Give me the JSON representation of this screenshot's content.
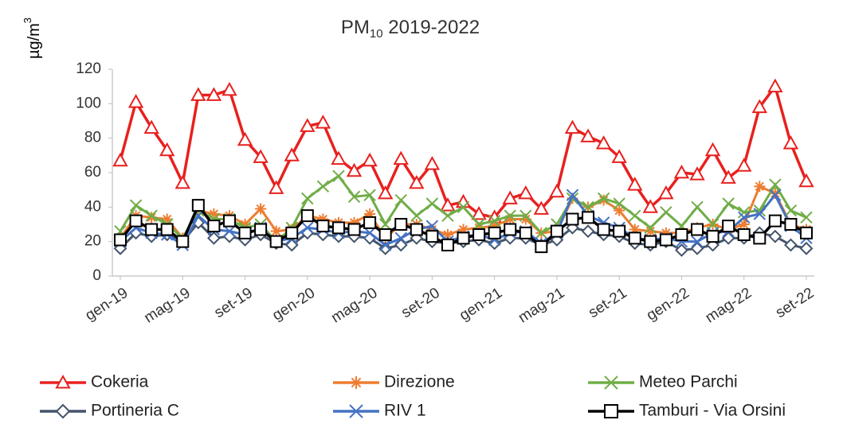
{
  "chart_data": {
    "type": "line",
    "title": {
      "main": "PM",
      "sub": "10",
      "rest": " 2019-2022"
    },
    "y_label": {
      "base": "µg/m",
      "sup": "3"
    },
    "categories": [
      "gen-19",
      null,
      null,
      null,
      "mag-19",
      null,
      null,
      null,
      "set-19",
      null,
      null,
      null,
      "gen-20",
      null,
      null,
      null,
      "mag-20",
      null,
      null,
      null,
      "set-20",
      null,
      null,
      null,
      "gen-21",
      null,
      null,
      null,
      "mag-21",
      null,
      null,
      null,
      "set-21",
      null,
      null,
      null,
      "gen-22",
      null,
      null,
      null,
      "mag-22",
      null,
      null,
      null,
      "set-22"
    ],
    "ylim": [
      0,
      120
    ],
    "yticks": [
      0,
      20,
      40,
      60,
      80,
      100,
      120
    ],
    "grid": false,
    "legend": "bottom",
    "series": [
      {
        "name": "Cokeria",
        "color": "#e8201e",
        "marker": "triangle",
        "values": [
          67,
          101,
          86,
          73,
          54,
          105,
          105,
          108,
          79,
          69,
          51,
          70,
          87,
          89,
          68,
          61,
          67,
          48,
          68,
          54,
          65,
          41,
          43,
          36,
          34,
          45,
          48,
          39,
          49,
          86,
          81,
          77,
          69,
          53,
          40,
          48,
          60,
          59,
          73,
          57,
          64,
          98,
          110,
          77,
          55
        ]
      },
      {
        "name": "Direzione",
        "color": "#ed7d31",
        "marker": "asterisk",
        "values": [
          22,
          35,
          34,
          33,
          22,
          38,
          36,
          35,
          30,
          39,
          26,
          27,
          35,
          33,
          31,
          31,
          36,
          22,
          30,
          30,
          27,
          24,
          27,
          28,
          29,
          33,
          33,
          25,
          26,
          45,
          40,
          44,
          38,
          27,
          26,
          25,
          25,
          28,
          30,
          27,
          30,
          52,
          48,
          30,
          27
        ]
      },
      {
        "name": "Meteo Parchi",
        "color": "#70ad47",
        "marker": "x",
        "values": [
          26,
          41,
          35,
          30,
          22,
          38,
          33,
          33,
          28,
          30,
          20,
          28,
          45,
          52,
          58,
          46,
          47,
          30,
          44,
          35,
          42,
          35,
          40,
          30,
          32,
          35,
          35,
          25,
          30,
          45,
          40,
          45,
          42,
          35,
          28,
          37,
          29,
          40,
          30,
          42,
          37,
          38,
          53,
          38,
          34
        ]
      },
      {
        "name": "Portineria C",
        "color": "#44546a",
        "marker": "diamond",
        "values": [
          16,
          25,
          23,
          24,
          20,
          31,
          22,
          23,
          21,
          24,
          19,
          18,
          25,
          24,
          23,
          23,
          22,
          16,
          18,
          22,
          20,
          19,
          20,
          21,
          19,
          22,
          22,
          18,
          21,
          28,
          26,
          24,
          23,
          19,
          18,
          20,
          15,
          16,
          18,
          22,
          22,
          25,
          23,
          18,
          16
        ]
      },
      {
        "name": "RIV 1",
        "color": "#4472c4",
        "marker": "x",
        "values": [
          20,
          28,
          25,
          24,
          18,
          35,
          27,
          26,
          24,
          28,
          20,
          22,
          28,
          27,
          25,
          26,
          25,
          18,
          22,
          27,
          29,
          20,
          23,
          24,
          21,
          25,
          26,
          19,
          25,
          47,
          35,
          31,
          28,
          22,
          21,
          22,
          20,
          20,
          25,
          26,
          34,
          36,
          47,
          29,
          22
        ]
      },
      {
        "name": "Tamburi - Via Orsini",
        "color": "#000000",
        "marker": "square",
        "values": [
          21,
          32,
          27,
          27,
          20,
          41,
          29,
          32,
          25,
          27,
          20,
          25,
          35,
          29,
          28,
          27,
          31,
          24,
          30,
          27,
          23,
          18,
          22,
          24,
          25,
          27,
          25,
          17,
          26,
          33,
          34,
          27,
          26,
          22,
          20,
          21,
          24,
          27,
          23,
          29,
          24,
          22,
          32,
          30,
          25
        ]
      }
    ]
  }
}
